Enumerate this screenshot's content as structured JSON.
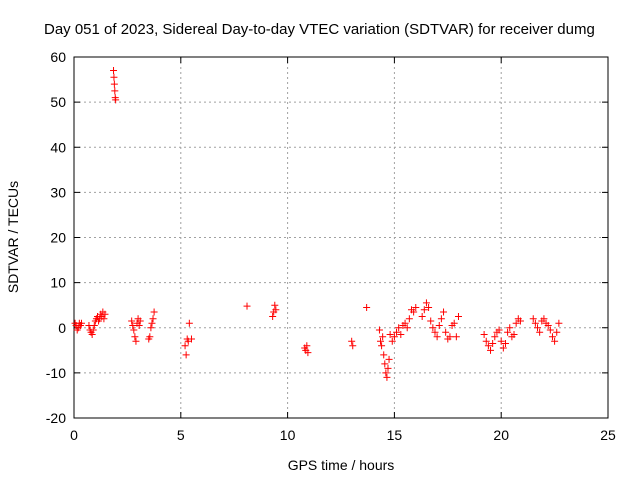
{
  "chart_data": {
    "type": "scatter",
    "title": "Day 051 of 2023, Sidereal Day-to-day VTEC variation (SDTVAR) for receiver dumg",
    "xlabel": "GPS time / hours",
    "ylabel": "SDTVAR / TECUs",
    "xlim": [
      0,
      25
    ],
    "ylim": [
      -20,
      60
    ],
    "xticks": [
      0,
      5,
      10,
      15,
      20,
      25
    ],
    "yticks": [
      -20,
      -10,
      0,
      10,
      20,
      30,
      40,
      50,
      60
    ],
    "grid": true,
    "marker": "plus",
    "color": "#ff0000",
    "series": [
      {
        "name": "SDTVAR",
        "x": [
          0.05,
          0.1,
          0.15,
          0.2,
          0.25,
          0.3,
          0.35,
          0.7,
          0.75,
          0.8,
          0.85,
          0.9,
          0.95,
          1.0,
          1.05,
          1.1,
          1.15,
          1.2,
          1.25,
          1.3,
          1.35,
          1.4,
          1.45,
          1.85,
          1.87,
          1.89,
          1.91,
          1.93,
          1.95,
          2.7,
          2.75,
          2.8,
          2.85,
          2.9,
          2.95,
          3.0,
          3.05,
          3.1,
          3.5,
          3.55,
          3.6,
          3.65,
          3.7,
          3.75,
          5.2,
          5.25,
          5.3,
          5.35,
          5.4,
          5.5,
          8.1,
          9.3,
          9.35,
          9.4,
          9.45,
          10.8,
          10.85,
          10.9,
          10.95,
          13.0,
          13.05,
          13.7,
          14.3,
          14.35,
          14.4,
          14.45,
          14.5,
          14.55,
          14.6,
          14.65,
          14.7,
          14.75,
          14.8,
          14.9,
          15.0,
          15.1,
          15.2,
          15.3,
          15.4,
          15.5,
          15.6,
          15.7,
          15.8,
          15.9,
          16.0,
          16.3,
          16.4,
          16.5,
          16.6,
          16.7,
          16.8,
          16.9,
          17.0,
          17.1,
          17.2,
          17.3,
          17.4,
          17.5,
          17.6,
          17.7,
          17.8,
          17.9,
          18.0,
          19.2,
          19.3,
          19.4,
          19.5,
          19.6,
          19.7,
          19.8,
          19.9,
          20.0,
          20.1,
          20.2,
          20.3,
          20.4,
          20.5,
          20.6,
          20.7,
          20.8,
          20.9,
          21.5,
          21.6,
          21.7,
          21.8,
          21.9,
          22.0,
          22.1,
          22.2,
          22.3,
          22.4,
          22.5,
          22.6,
          22.7
        ],
        "y": [
          1.0,
          0.5,
          -0.5,
          0.0,
          1.0,
          0.5,
          1.0,
          0.5,
          -0.5,
          -1.0,
          -1.5,
          -0.5,
          0.5,
          1.5,
          2.0,
          2.5,
          1.5,
          2.0,
          3.0,
          2.5,
          3.5,
          2.0,
          3.0,
          57.0,
          55.5,
          54.0,
          52.5,
          51.0,
          50.5,
          1.5,
          0.5,
          -0.5,
          -2.0,
          -3.0,
          1.0,
          2.0,
          0.5,
          1.5,
          -2.5,
          -2.0,
          0.0,
          1.0,
          2.0,
          3.5,
          -4.0,
          -6.0,
          -2.5,
          -3.0,
          1.0,
          -2.5,
          4.8,
          2.5,
          3.5,
          5.0,
          4.0,
          -4.5,
          -5.0,
          -4.0,
          -5.5,
          -3.0,
          -4.0,
          4.5,
          -0.5,
          -3.0,
          -4.0,
          -2.0,
          -6.0,
          -8.0,
          -10.0,
          -11.0,
          -9.0,
          -7.0,
          -1.5,
          -3.0,
          -2.0,
          -1.0,
          0.0,
          -1.5,
          0.5,
          1.0,
          0.0,
          2.0,
          4.0,
          3.5,
          4.5,
          2.5,
          4.0,
          5.5,
          4.5,
          1.5,
          0.0,
          -1.0,
          -2.0,
          0.5,
          2.0,
          3.5,
          -1.0,
          -2.5,
          -2.0,
          0.5,
          1.0,
          -2.0,
          2.5,
          -1.5,
          -3.0,
          -4.0,
          -5.0,
          -3.5,
          -2.0,
          -1.0,
          -0.5,
          -3.0,
          -4.5,
          -3.5,
          -1.0,
          0.0,
          -2.0,
          -1.5,
          1.0,
          2.0,
          1.5,
          2.0,
          1.0,
          0.0,
          -1.0,
          1.5,
          2.0,
          1.0,
          0.5,
          -0.5,
          -2.0,
          -3.0,
          -1.0,
          1.0
        ]
      }
    ]
  }
}
